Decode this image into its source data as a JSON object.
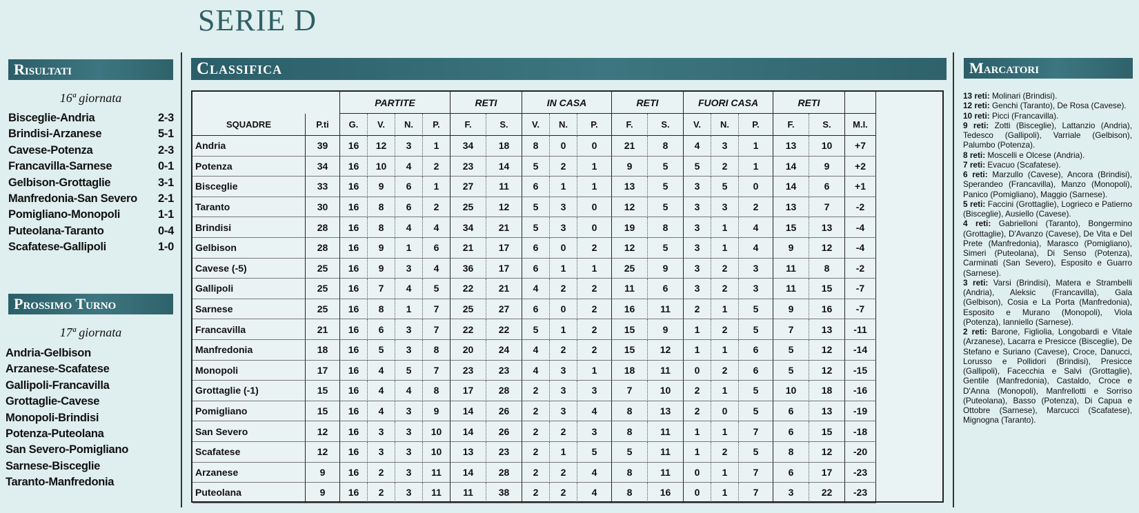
{
  "title": "SERIE D",
  "risultati": {
    "heading": "Risultati",
    "giornata": "16ª giornata",
    "matches": [
      {
        "match": "Bisceglie-Andria",
        "score": "2-3"
      },
      {
        "match": "Brindisi-Arzanese",
        "score": "5-1"
      },
      {
        "match": "Cavese-Potenza",
        "score": "2-3"
      },
      {
        "match": "Francavilla-Sarnese",
        "score": "0-1"
      },
      {
        "match": "Gelbison-Grottaglie",
        "score": "3-1"
      },
      {
        "match": "Manfredonia-San Severo",
        "score": "2-1"
      },
      {
        "match": "Pomigliano-Monopoli",
        "score": "1-1"
      },
      {
        "match": "Puteolana-Taranto",
        "score": "0-4"
      },
      {
        "match": "Scafatese-Gallipoli",
        "score": "1-0"
      }
    ]
  },
  "prossimo_turno": {
    "heading": "Prossimo Turno",
    "giornata": "17ª giornata",
    "matches": [
      "Andria-Gelbison",
      "Arzanese-Scafatese",
      "Gallipoli-Francavilla",
      "Grottaglie-Cavese",
      "Monopoli-Brindisi",
      "Potenza-Puteolana",
      "San Severo-Pomigliano",
      "Sarnese-Bisceglie",
      "Taranto-Manfredonia"
    ]
  },
  "classifica": {
    "heading": "Classifica",
    "group_headers": [
      "PARTITE",
      "RETI",
      "IN CASA",
      "RETI",
      "FUORI CASA",
      "RETI"
    ],
    "columns": [
      "SQUADRE",
      "P.ti",
      "G.",
      "V.",
      "N.",
      "P.",
      "F.",
      "S.",
      "V.",
      "N.",
      "P.",
      "F.",
      "S.",
      "V.",
      "N.",
      "P.",
      "F.",
      "S.",
      "M.I."
    ],
    "rows": [
      [
        "Andria",
        "39",
        "16",
        "12",
        "3",
        "1",
        "34",
        "18",
        "8",
        "0",
        "0",
        "21",
        "8",
        "4",
        "3",
        "1",
        "13",
        "10",
        "+7"
      ],
      [
        "Potenza",
        "34",
        "16",
        "10",
        "4",
        "2",
        "23",
        "14",
        "5",
        "2",
        "1",
        "9",
        "5",
        "5",
        "2",
        "1",
        "14",
        "9",
        "+2"
      ],
      [
        "Bisceglie",
        "33",
        "16",
        "9",
        "6",
        "1",
        "27",
        "11",
        "6",
        "1",
        "1",
        "13",
        "5",
        "3",
        "5",
        "0",
        "14",
        "6",
        "+1"
      ],
      [
        "Taranto",
        "30",
        "16",
        "8",
        "6",
        "2",
        "25",
        "12",
        "5",
        "3",
        "0",
        "12",
        "5",
        "3",
        "3",
        "2",
        "13",
        "7",
        "-2"
      ],
      [
        "Brindisi",
        "28",
        "16",
        "8",
        "4",
        "4",
        "34",
        "21",
        "5",
        "3",
        "0",
        "19",
        "8",
        "3",
        "1",
        "4",
        "15",
        "13",
        "-4"
      ],
      [
        "Gelbison",
        "28",
        "16",
        "9",
        "1",
        "6",
        "21",
        "17",
        "6",
        "0",
        "2",
        "12",
        "5",
        "3",
        "1",
        "4",
        "9",
        "12",
        "-4"
      ],
      [
        "Cavese (-5)",
        "25",
        "16",
        "9",
        "3",
        "4",
        "36",
        "17",
        "6",
        "1",
        "1",
        "25",
        "9",
        "3",
        "2",
        "3",
        "11",
        "8",
        "-2"
      ],
      [
        "Gallipoli",
        "25",
        "16",
        "7",
        "4",
        "5",
        "22",
        "21",
        "4",
        "2",
        "2",
        "11",
        "6",
        "3",
        "2",
        "3",
        "11",
        "15",
        "-7"
      ],
      [
        "Sarnese",
        "25",
        "16",
        "8",
        "1",
        "7",
        "25",
        "27",
        "6",
        "0",
        "2",
        "16",
        "11",
        "2",
        "1",
        "5",
        "9",
        "16",
        "-7"
      ],
      [
        "Francavilla",
        "21",
        "16",
        "6",
        "3",
        "7",
        "22",
        "22",
        "5",
        "1",
        "2",
        "15",
        "9",
        "1",
        "2",
        "5",
        "7",
        "13",
        "-11"
      ],
      [
        "Manfredonia",
        "18",
        "16",
        "5",
        "3",
        "8",
        "20",
        "24",
        "4",
        "2",
        "2",
        "15",
        "12",
        "1",
        "1",
        "6",
        "5",
        "12",
        "-14"
      ],
      [
        "Monopoli",
        "17",
        "16",
        "4",
        "5",
        "7",
        "23",
        "23",
        "4",
        "3",
        "1",
        "18",
        "11",
        "0",
        "2",
        "6",
        "5",
        "12",
        "-15"
      ],
      [
        "Grottaglie (-1)",
        "15",
        "16",
        "4",
        "4",
        "8",
        "17",
        "28",
        "2",
        "3",
        "3",
        "7",
        "10",
        "2",
        "1",
        "5",
        "10",
        "18",
        "-16"
      ],
      [
        "Pomigliano",
        "15",
        "16",
        "4",
        "3",
        "9",
        "14",
        "26",
        "2",
        "3",
        "4",
        "8",
        "13",
        "2",
        "0",
        "5",
        "6",
        "13",
        "-19"
      ],
      [
        "San Severo",
        "12",
        "16",
        "3",
        "3",
        "10",
        "14",
        "26",
        "2",
        "2",
        "3",
        "8",
        "11",
        "1",
        "1",
        "7",
        "6",
        "15",
        "-18"
      ],
      [
        "Scafatese",
        "12",
        "16",
        "3",
        "3",
        "10",
        "13",
        "23",
        "2",
        "1",
        "5",
        "5",
        "11",
        "1",
        "2",
        "5",
        "8",
        "12",
        "-20"
      ],
      [
        "Arzanese",
        "9",
        "16",
        "2",
        "3",
        "11",
        "14",
        "28",
        "2",
        "2",
        "4",
        "8",
        "11",
        "0",
        "1",
        "7",
        "6",
        "17",
        "-23"
      ],
      [
        "Puteolana",
        "9",
        "16",
        "2",
        "3",
        "11",
        "11",
        "38",
        "2",
        "2",
        "4",
        "8",
        "16",
        "0",
        "1",
        "7",
        "3",
        "22",
        "-23"
      ]
    ]
  },
  "marcatori": {
    "heading": "Marcatori",
    "entries": [
      {
        "reti": "13 reti:",
        "text": "Molinari (Brindisi)."
      },
      {
        "reti": "12 reti:",
        "text": "Genchi (Taranto), De Rosa (Cavese)."
      },
      {
        "reti": "10 reti:",
        "text": "Picci (Francavilla)."
      },
      {
        "reti": "9 reti:",
        "text": "Zotti (Bisceglie), Lattanzio (Andria), Tedesco (Gallipoli), Varriale (Gelbison), Palumbo (Potenza)."
      },
      {
        "reti": "8 reti:",
        "text": "Moscelli e Olcese (Andria)."
      },
      {
        "reti": "7 reti:",
        "text": "Evacuo (Scafatese)."
      },
      {
        "reti": "6 reti:",
        "text": "Marzullo (Cavese), Ancora (Brindisi), Sperandeo (Francavilla), Manzo (Monopoli), Panico (Pomigliano), Maggio (Sarnese)."
      },
      {
        "reti": "5 reti:",
        "text": "Faccini (Grottaglie), Logrieco e Patierno (Bisceglie), Ausiello (Cavese)."
      },
      {
        "reti": "4 reti:",
        "text": "Gabrielloni (Taranto), Bongermino (Grottaglie), D'Avanzo (Cavese), De Vita e Del Prete (Manfredonia), Marasco (Pomigliano), Simeri (Puteolana), Di Senso (Potenza), Carminati (San Severo), Esposito e Guarro (Sarnese)."
      },
      {
        "reti": "3 reti:",
        "text": "Varsi (Brindisi), Matera e Strambelli (Andria), Aleksic (Francavilla), Gala (Gelbison), Cosia e La Porta (Manfredonia), Esposito e Murano (Monopoli), Viola (Potenza), Ianniello (Sarnese)."
      },
      {
        "reti": "2 reti:",
        "text": "Barone, Figliolia, Longobardi e Vitale (Arzanese), Lacarra e Presicce (Bisceglie), De Stefano e Suriano (Cavese), Croce, Danucci, Lorusso e Pollidori (Brindisi), Presicce (Gallipoli), Facecchia e Salvi (Grottaglie), Gentile (Manfredonia), Castaldo, Croce e D'Anna (Monopoli), Manfrellotti e Sorriso (Puteolana), Basso (Potenza), Di Capua e Ottobre (Sarnese), Marcucci (Scafatese), Mignogna (Taranto)."
      }
    ]
  }
}
